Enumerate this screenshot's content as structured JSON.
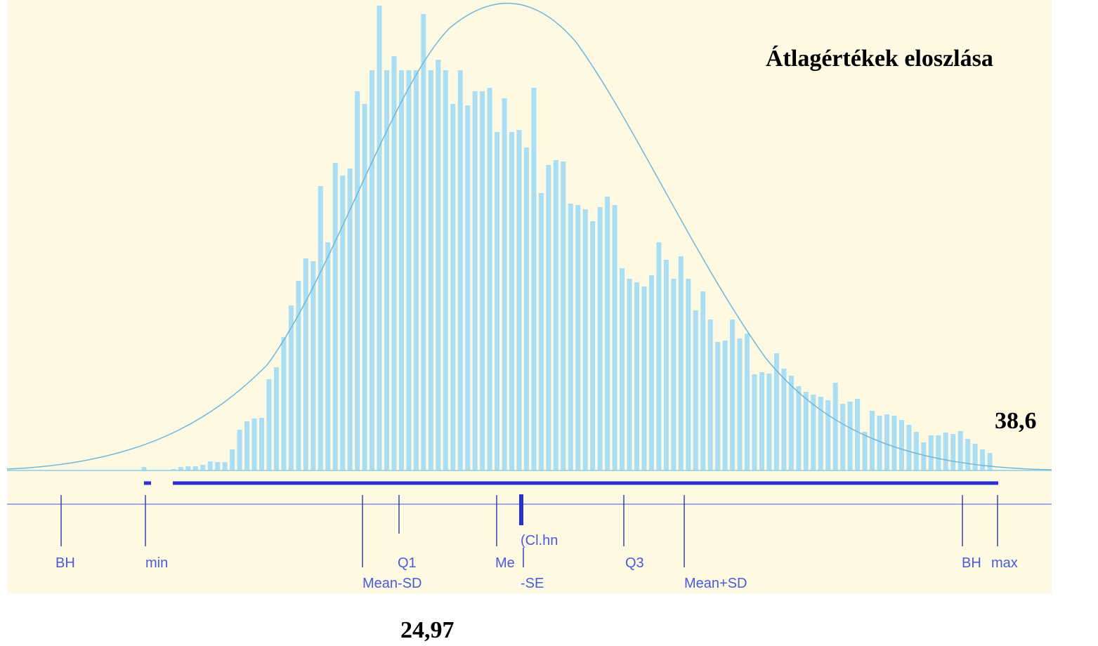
{
  "chart_data": {
    "type": "bar",
    "title": "Átlagértékek eloszlása",
    "annotations": [
      "38,6",
      "24,97"
    ],
    "markers": [
      "BH",
      "min",
      "Mean-SD",
      "Q1",
      "Me",
      "(Cl.hn",
      "-SE",
      "Q3",
      "Mean+SD",
      "BH",
      "max"
    ],
    "categories": [
      null,
      null,
      null,
      null,
      null,
      null,
      null,
      null,
      null,
      null,
      null,
      null,
      null,
      null,
      null,
      null,
      null,
      null,
      null,
      null,
      null,
      null,
      null,
      null,
      null,
      null,
      null,
      null,
      null,
      null,
      null,
      null,
      null,
      null,
      null,
      null,
      null,
      null,
      null,
      null,
      null,
      null,
      null,
      null,
      null,
      null,
      null,
      null,
      null,
      null,
      null,
      null,
      null,
      null,
      null,
      null,
      null,
      null,
      null,
      null,
      null,
      null,
      null,
      null,
      null,
      null,
      null,
      null,
      null,
      null,
      null,
      null,
      null,
      null,
      null,
      null,
      null,
      null,
      null,
      null,
      null,
      null,
      null,
      null,
      null,
      null,
      null,
      null,
      null,
      null,
      null,
      null,
      null,
      null,
      null,
      null,
      null,
      null,
      null,
      null,
      null,
      null,
      null,
      null,
      null,
      null,
      null,
      null,
      null,
      null,
      null,
      null,
      null,
      null,
      null,
      null
    ],
    "values": [
      5,
      0,
      0,
      0,
      2,
      5,
      6,
      6,
      8,
      13,
      12,
      12,
      30,
      58,
      70,
      74,
      75,
      130,
      147,
      190,
      235,
      270,
      302,
      298,
      405,
      325,
      438,
      420,
      430,
      540,
      522,
      570,
      662,
      570,
      590,
      570,
      570,
      570,
      650,
      570,
      585,
      570,
      522,
      570,
      520,
      540,
      540,
      545,
      482,
      530,
      482,
      485,
      460,
      545,
      395,
      435,
      442,
      440,
      380,
      378,
      372,
      355,
      375,
      390,
      378,
      288,
      273,
      268,
      262,
      278,
      325,
      300,
      273,
      305,
      273,
      228,
      255,
      215,
      183,
      185,
      215,
      188,
      195,
      137,
      140,
      138,
      167,
      145,
      135,
      120,
      112,
      108,
      105,
      100,
      125,
      95,
      98,
      102,
      55,
      85,
      78,
      80,
      78,
      72,
      65,
      55,
      40,
      50,
      50,
      54,
      52,
      56,
      45,
      38,
      30,
      25
    ],
    "color": "#a9def5",
    "ylim": [
      0,
      665
    ]
  }
}
